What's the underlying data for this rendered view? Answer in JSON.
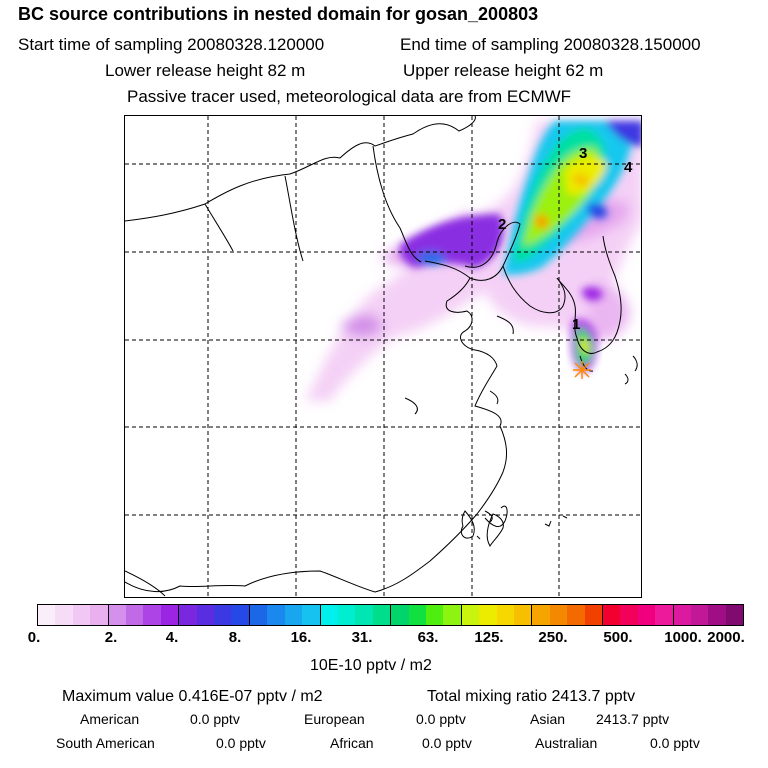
{
  "header": {
    "title": "BC  source contributions in nested domain for gosan_200803",
    "start_time": "Start time of sampling 20080328.120000",
    "end_time": "End time of sampling 20080328.150000",
    "lower_release": "Lower release height   82 m",
    "upper_release": "Upper release height   62 m",
    "tracer_note": "Passive tracer used, meteorological data are from ECMWF"
  },
  "map": {
    "labels": [
      {
        "text": "1"
      },
      {
        "text": "2"
      },
      {
        "text": "3"
      },
      {
        "text": "4"
      }
    ]
  },
  "colorbar": {
    "colors": [
      "#fbeefb",
      "#f6dcf6",
      "#f0c8f3",
      "#e9b0f0",
      "#d590ec",
      "#c06ae8",
      "#ad45e6",
      "#9c25e4",
      "#7a28e0",
      "#5a2ee0",
      "#3c38e2",
      "#2648e6",
      "#1c66e8",
      "#1a88ec",
      "#18a6ef",
      "#16c2f0",
      "#00f0ee",
      "#00eed0",
      "#00e6b2",
      "#00de8c",
      "#00d46a",
      "#10e040",
      "#50ee10",
      "#8cf410",
      "#c8f410",
      "#ecec00",
      "#f6d800",
      "#f6c000",
      "#f6a400",
      "#f48800",
      "#f26a00",
      "#f24000",
      "#f20030",
      "#f2005a",
      "#f0007e",
      "#ee1a9c",
      "#dc1aa0",
      "#c01896",
      "#a00e86",
      "#800a70"
    ],
    "ticks": [
      "0.",
      "2.",
      "4.",
      "8.",
      "16.",
      "31.",
      "63.",
      "125.",
      "250.",
      "500.",
      "1000.",
      "2000."
    ],
    "unit": "10E-10 pptv / m2"
  },
  "summary": {
    "max_label": "Maximum value  0.416E-07 pptv / m2",
    "total_label": "Total mixing ratio     2413.7 pptv",
    "sources": [
      {
        "name": "American",
        "value": "0.0 pptv"
      },
      {
        "name": "European",
        "value": "0.0 pptv"
      },
      {
        "name": "Asian",
        "value": "2413.7 pptv"
      },
      {
        "name": "South American",
        "value": "0.0 pptv"
      },
      {
        "name": "African",
        "value": "0.0 pptv"
      },
      {
        "name": "Australian",
        "value": "0.0 pptv"
      }
    ]
  }
}
